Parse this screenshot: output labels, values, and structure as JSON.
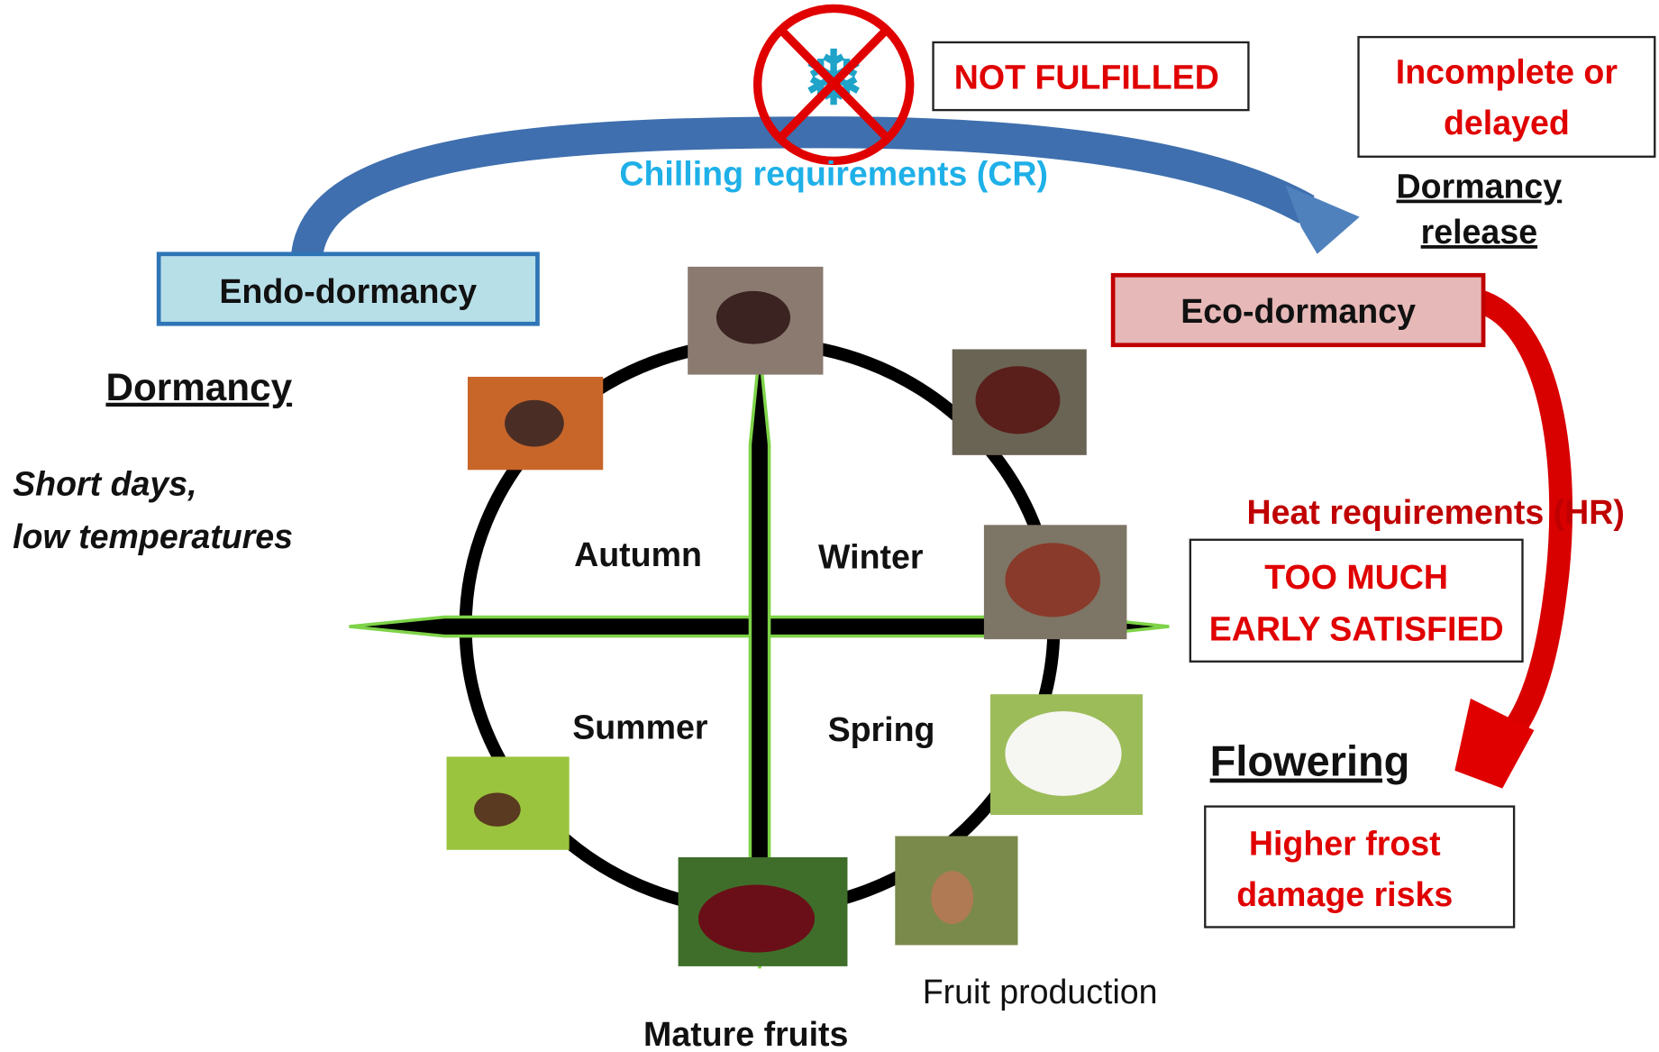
{
  "header": {
    "not_fulfilled": "NOT FULFILLED",
    "incomplete": [
      "Incomplete or",
      "delayed"
    ],
    "chilling": "Chilling requirements (CR)",
    "dormancy_release": [
      "Dormancy",
      "release"
    ]
  },
  "states": {
    "endo": "Endo-dormancy",
    "eco": "Eco-dormancy"
  },
  "left": {
    "dormancy": "Dormancy",
    "conditions": [
      "Short days,",
      "low temperatures"
    ]
  },
  "seasons": {
    "autumn": "Autumn",
    "winter": "Winter",
    "summer": "Summer",
    "spring": "Spring"
  },
  "right": {
    "heat": "Heat requirements (HR)",
    "too_much": [
      "TOO MUCH",
      "EARLY SATISFIED"
    ],
    "flowering": "Flowering",
    "frost": [
      "Higher frost",
      "damage risks"
    ]
  },
  "bottom": {
    "fruit_production": "Fruit production",
    "mature_fruits": "Mature fruits"
  }
}
